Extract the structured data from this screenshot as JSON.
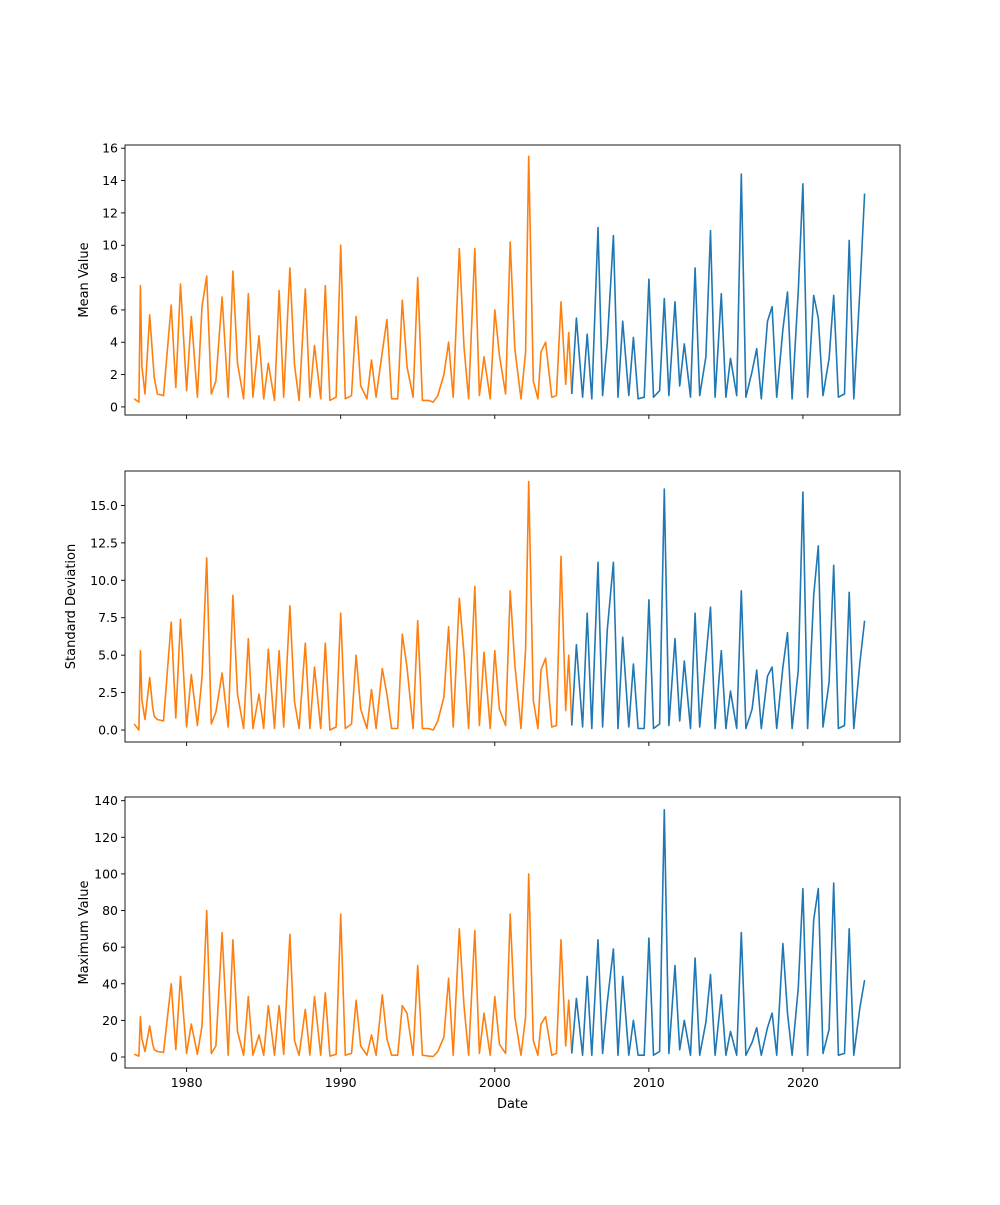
{
  "chart_data": [
    {
      "type": "line",
      "ylabel": "Mean Value",
      "xlim": [
        1976.0,
        2026.3
      ],
      "ylim": [
        -0.5,
        16.2
      ],
      "yticks": [
        0,
        2,
        4,
        6,
        8,
        10,
        12,
        14,
        16
      ],
      "ytick_format": "int",
      "x_tick_labels_visible": false,
      "series": [
        {
          "color": "#ff7f0e",
          "x": [
            1976.6,
            1976.9,
            1977.0,
            1977.1,
            1977.3,
            1977.6,
            1977.8,
            1977.9,
            1978.1,
            1978.5,
            1979.0,
            1979.3,
            1979.6,
            1980.0,
            1980.3,
            1980.7,
            1981.0,
            1981.3,
            1981.6,
            1981.9,
            1982.3,
            1982.7,
            1983.0,
            1983.3,
            1983.7,
            1984.0,
            1984.3,
            1984.7,
            1985.0,
            1985.3,
            1985.7,
            1986.0,
            1986.3,
            1986.7,
            1987.0,
            1987.3,
            1987.7,
            1988.0,
            1988.3,
            1988.7,
            1989.0,
            1989.3,
            1989.7,
            1990.0,
            1990.3,
            1990.7,
            1991.0,
            1991.3,
            1991.7,
            1992.0,
            1992.3,
            1992.7,
            1993.0,
            1993.3,
            1993.7,
            1994.0,
            1994.3,
            1994.7,
            1995.0,
            1995.3,
            1995.7,
            1996.0,
            1996.3,
            1996.7,
            1997.0,
            1997.3,
            1997.7,
            1998.0,
            1998.3,
            1998.7,
            1999.0,
            1999.3,
            1999.7,
            2000.0,
            2000.3,
            2000.7,
            2001.0,
            2001.3,
            2001.7,
            2002.0,
            2002.2,
            2002.5,
            2002.8,
            2003.0,
            2003.3,
            2003.7,
            2004.0,
            2004.3,
            2004.6,
            2004.8,
            2005.0
          ],
          "y": [
            0.5,
            0.3,
            7.5,
            2.5,
            0.8,
            5.7,
            3.1,
            1.8,
            0.8,
            0.7,
            6.3,
            1.2,
            7.6,
            1.0,
            5.6,
            0.6,
            6.2,
            8.1,
            0.8,
            1.6,
            6.8,
            0.6,
            8.4,
            2.7,
            0.5,
            7.0,
            0.6,
            4.4,
            0.5,
            2.7,
            0.4,
            7.2,
            0.6,
            8.6,
            2.6,
            0.4,
            7.3,
            0.6,
            3.8,
            0.5,
            7.5,
            0.4,
            0.6,
            10.0,
            0.5,
            0.7,
            5.6,
            1.3,
            0.5,
            2.9,
            0.6,
            3.4,
            5.4,
            0.5,
            0.5,
            6.6,
            2.5,
            0.6,
            8.0,
            0.4,
            0.4,
            0.3,
            0.7,
            2.0,
            4.0,
            0.6,
            9.8,
            3.7,
            0.5,
            9.8,
            0.7,
            3.1,
            0.5,
            6.0,
            3.2,
            0.8,
            10.2,
            3.6,
            0.5,
            3.4,
            15.5,
            1.6,
            0.5,
            3.4,
            4.0,
            0.6,
            0.7,
            6.5,
            1.4,
            4.6,
            0.8
          ]
        },
        {
          "color": "#1f77b4",
          "x": [
            2005.0,
            2005.3,
            2005.7,
            2006.0,
            2006.3,
            2006.7,
            2007.0,
            2007.3,
            2007.7,
            2008.0,
            2008.3,
            2008.7,
            2009.0,
            2009.3,
            2009.7,
            2010.0,
            2010.3,
            2010.7,
            2011.0,
            2011.3,
            2011.7,
            2012.0,
            2012.3,
            2012.7,
            2013.0,
            2013.3,
            2013.7,
            2014.0,
            2014.3,
            2014.7,
            2015.0,
            2015.3,
            2015.7,
            2016.0,
            2016.3,
            2016.7,
            2017.0,
            2017.3,
            2017.7,
            2018.0,
            2018.3,
            2018.7,
            2019.0,
            2019.3,
            2019.7,
            2020.0,
            2020.3,
            2020.7,
            2021.0,
            2021.3,
            2021.7,
            2022.0,
            2022.3,
            2022.7,
            2023.0,
            2023.3,
            2023.7,
            2024.0
          ],
          "y": [
            0.8,
            5.5,
            0.6,
            4.5,
            0.5,
            11.1,
            0.7,
            4.0,
            10.6,
            0.6,
            5.3,
            0.7,
            4.3,
            0.5,
            0.6,
            7.9,
            0.6,
            1.0,
            6.7,
            0.7,
            6.5,
            1.3,
            3.9,
            0.6,
            8.6,
            0.7,
            3.1,
            10.9,
            0.6,
            7.0,
            0.6,
            3.0,
            0.7,
            14.4,
            0.6,
            2.2,
            3.6,
            0.5,
            5.3,
            6.2,
            0.6,
            4.8,
            7.1,
            0.5,
            7.2,
            13.8,
            0.6,
            6.9,
            5.5,
            0.7,
            3.0,
            6.9,
            0.6,
            0.8,
            10.3,
            0.5,
            7.2,
            13.2
          ]
        }
      ]
    },
    {
      "type": "line",
      "ylabel": "Standard Deviation",
      "xlim": [
        1976.0,
        2026.3
      ],
      "ylim": [
        -0.8,
        17.3
      ],
      "yticks": [
        0.0,
        2.5,
        5.0,
        7.5,
        10.0,
        12.5,
        15.0
      ],
      "ytick_format": "1dp",
      "x_tick_labels_visible": false,
      "series": [
        {
          "color": "#ff7f0e",
          "x": [
            1976.6,
            1976.9,
            1977.0,
            1977.1,
            1977.3,
            1977.6,
            1977.8,
            1977.9,
            1978.1,
            1978.5,
            1979.0,
            1979.3,
            1979.6,
            1980.0,
            1980.3,
            1980.7,
            1981.0,
            1981.3,
            1981.6,
            1981.9,
            1982.3,
            1982.7,
            1983.0,
            1983.3,
            1983.7,
            1984.0,
            1984.3,
            1984.7,
            1985.0,
            1985.3,
            1985.7,
            1986.0,
            1986.3,
            1986.7,
            1987.0,
            1987.3,
            1987.7,
            1988.0,
            1988.3,
            1988.7,
            1989.0,
            1989.3,
            1989.7,
            1990.0,
            1990.3,
            1990.7,
            1991.0,
            1991.3,
            1991.7,
            1992.0,
            1992.3,
            1992.7,
            1993.0,
            1993.3,
            1993.7,
            1994.0,
            1994.3,
            1994.7,
            1995.0,
            1995.3,
            1995.7,
            1996.0,
            1996.3,
            1996.7,
            1997.0,
            1997.3,
            1997.7,
            1998.0,
            1998.3,
            1998.7,
            1999.0,
            1999.3,
            1999.7,
            2000.0,
            2000.3,
            2000.7,
            2001.0,
            2001.3,
            2001.7,
            2002.0,
            2002.2,
            2002.5,
            2002.8,
            2003.0,
            2003.3,
            2003.7,
            2004.0,
            2004.3,
            2004.6,
            2004.8,
            2005.0
          ],
          "y": [
            0.4,
            0.0,
            5.3,
            2.0,
            0.7,
            3.5,
            1.5,
            0.9,
            0.7,
            0.6,
            7.2,
            0.8,
            7.4,
            0.2,
            3.7,
            0.3,
            3.5,
            11.5,
            0.4,
            1.2,
            3.8,
            0.2,
            9.0,
            2.4,
            0.1,
            6.1,
            0.1,
            2.4,
            0.1,
            5.4,
            0.1,
            5.3,
            0.2,
            8.3,
            1.9,
            0.1,
            5.8,
            0.1,
            4.2,
            0.1,
            5.8,
            0.0,
            0.2,
            7.8,
            0.1,
            0.4,
            5.0,
            1.4,
            0.1,
            2.7,
            0.1,
            4.1,
            2.4,
            0.1,
            0.1,
            6.4,
            4.2,
            0.1,
            7.3,
            0.1,
            0.1,
            0.0,
            0.6,
            2.2,
            6.9,
            0.2,
            8.8,
            5.1,
            0.1,
            9.6,
            0.3,
            5.2,
            0.1,
            5.3,
            1.4,
            0.3,
            9.3,
            4.4,
            0.1,
            5.4,
            16.6,
            2.0,
            0.1,
            4.0,
            4.8,
            0.2,
            0.3,
            11.6,
            1.3,
            5.0,
            0.3
          ]
        },
        {
          "color": "#1f77b4",
          "x": [
            2005.0,
            2005.3,
            2005.7,
            2006.0,
            2006.3,
            2006.7,
            2007.0,
            2007.3,
            2007.7,
            2008.0,
            2008.3,
            2008.7,
            2009.0,
            2009.3,
            2009.7,
            2010.0,
            2010.3,
            2010.7,
            2011.0,
            2011.3,
            2011.7,
            2012.0,
            2012.3,
            2012.7,
            2013.0,
            2013.3,
            2013.7,
            2014.0,
            2014.3,
            2014.7,
            2015.0,
            2015.3,
            2015.7,
            2016.0,
            2016.3,
            2016.7,
            2017.0,
            2017.3,
            2017.7,
            2018.0,
            2018.3,
            2018.7,
            2019.0,
            2019.3,
            2019.7,
            2020.0,
            2020.3,
            2020.7,
            2021.0,
            2021.3,
            2021.7,
            2022.0,
            2022.3,
            2022.7,
            2023.0,
            2023.3,
            2023.7,
            2024.0
          ],
          "y": [
            0.3,
            5.7,
            0.2,
            7.8,
            0.1,
            11.2,
            0.2,
            6.7,
            11.2,
            0.1,
            6.2,
            0.2,
            4.4,
            0.1,
            0.1,
            8.7,
            0.1,
            0.4,
            16.1,
            0.3,
            6.1,
            0.6,
            4.6,
            0.1,
            7.8,
            0.2,
            4.8,
            8.2,
            0.1,
            5.3,
            0.1,
            2.6,
            0.1,
            9.3,
            0.1,
            1.4,
            4.0,
            0.1,
            3.6,
            4.2,
            0.1,
            4.2,
            6.5,
            0.1,
            4.0,
            15.9,
            0.1,
            9.0,
            12.3,
            0.2,
            3.2,
            11.0,
            0.1,
            0.3,
            9.2,
            0.1,
            4.5,
            7.3
          ]
        }
      ]
    },
    {
      "type": "line",
      "ylabel": "Maximum Value",
      "xlabel": "Date",
      "xlim": [
        1976.0,
        2026.3
      ],
      "ylim": [
        -6.0,
        142.0
      ],
      "yticks": [
        0,
        20,
        40,
        60,
        80,
        100,
        120,
        140
      ],
      "ytick_format": "int",
      "xticks": [
        1980,
        1990,
        2000,
        2010,
        2020
      ],
      "x_tick_labels_visible": true,
      "series": [
        {
          "color": "#ff7f0e",
          "x": [
            1976.6,
            1976.9,
            1977.0,
            1977.1,
            1977.3,
            1977.6,
            1977.8,
            1977.9,
            1978.1,
            1978.5,
            1979.0,
            1979.3,
            1979.6,
            1980.0,
            1980.3,
            1980.7,
            1981.0,
            1981.3,
            1981.6,
            1981.9,
            1982.3,
            1982.7,
            1983.0,
            1983.3,
            1983.7,
            1984.0,
            1984.3,
            1984.7,
            1985.0,
            1985.3,
            1985.7,
            1986.0,
            1986.3,
            1986.7,
            1987.0,
            1987.3,
            1987.7,
            1988.0,
            1988.3,
            1988.7,
            1989.0,
            1989.3,
            1989.7,
            1990.0,
            1990.3,
            1990.7,
            1991.0,
            1991.3,
            1991.7,
            1992.0,
            1992.3,
            1992.7,
            1993.0,
            1993.3,
            1993.7,
            1994.0,
            1994.3,
            1994.7,
            1995.0,
            1995.3,
            1995.7,
            1996.0,
            1996.3,
            1996.7,
            1997.0,
            1997.3,
            1997.7,
            1998.0,
            1998.3,
            1998.7,
            1999.0,
            1999.3,
            1999.7,
            2000.0,
            2000.3,
            2000.7,
            2001.0,
            2001.3,
            2001.7,
            2002.0,
            2002.2,
            2002.5,
            2002.8,
            2003.0,
            2003.3,
            2003.7,
            2004.0,
            2004.3,
            2004.6,
            2004.8,
            2005.0
          ],
          "y": [
            1.5,
            0.5,
            22.0,
            10.0,
            3.0,
            17.0,
            7.0,
            4.0,
            3.0,
            2.5,
            40.0,
            4.0,
            44.0,
            2.0,
            18.0,
            1.5,
            17.0,
            80.0,
            2.0,
            6.0,
            68.0,
            1.0,
            64.0,
            14.0,
            1.0,
            33.0,
            1.0,
            12.0,
            1.0,
            28.0,
            1.0,
            28.0,
            1.5,
            67.0,
            9.0,
            1.0,
            26.0,
            1.0,
            33.0,
            1.0,
            35.0,
            0.5,
            1.5,
            78.0,
            1.0,
            2.0,
            31.0,
            6.0,
            1.0,
            12.0,
            1.0,
            34.0,
            10.0,
            1.0,
            1.0,
            28.0,
            24.0,
            1.0,
            50.0,
            1.0,
            0.5,
            0.3,
            3.0,
            11.0,
            43.0,
            1.0,
            70.0,
            28.0,
            1.0,
            69.0,
            2.0,
            24.0,
            1.0,
            33.0,
            7.0,
            2.0,
            78.0,
            22.0,
            1.0,
            22.0,
            100.0,
            9.0,
            1.0,
            18.0,
            22.0,
            1.0,
            2.0,
            64.0,
            6.0,
            31.0,
            2.0
          ]
        },
        {
          "color": "#1f77b4",
          "x": [
            2005.0,
            2005.3,
            2005.7,
            2006.0,
            2006.3,
            2006.7,
            2007.0,
            2007.3,
            2007.7,
            2008.0,
            2008.3,
            2008.7,
            2009.0,
            2009.3,
            2009.7,
            2010.0,
            2010.3,
            2010.7,
            2011.0,
            2011.3,
            2011.7,
            2012.0,
            2012.3,
            2012.7,
            2013.0,
            2013.3,
            2013.7,
            2014.0,
            2014.3,
            2014.7,
            2015.0,
            2015.3,
            2015.7,
            2016.0,
            2016.3,
            2016.7,
            2017.0,
            2017.3,
            2017.7,
            2018.0,
            2018.3,
            2018.7,
            2019.0,
            2019.3,
            2019.7,
            2020.0,
            2020.3,
            2020.7,
            2021.0,
            2021.3,
            2021.7,
            2022.0,
            2022.3,
            2022.7,
            2023.0,
            2023.3,
            2023.7,
            2024.0
          ],
          "y": [
            2.0,
            32.0,
            1.0,
            44.0,
            1.0,
            64.0,
            2.0,
            30.0,
            59.0,
            1.0,
            44.0,
            1.0,
            20.0,
            1.0,
            1.0,
            65.0,
            1.0,
            3.0,
            135.0,
            2.0,
            50.0,
            4.0,
            20.0,
            1.0,
            54.0,
            1.0,
            19.0,
            45.0,
            1.0,
            34.0,
            1.0,
            14.0,
            1.0,
            68.0,
            1.0,
            8.0,
            16.0,
            1.0,
            16.0,
            24.0,
            1.0,
            62.0,
            24.0,
            1.0,
            38.0,
            92.0,
            1.0,
            75.0,
            92.0,
            2.0,
            15.0,
            95.0,
            1.0,
            2.0,
            70.0,
            1.0,
            27.0,
            42.0
          ]
        }
      ]
    }
  ]
}
